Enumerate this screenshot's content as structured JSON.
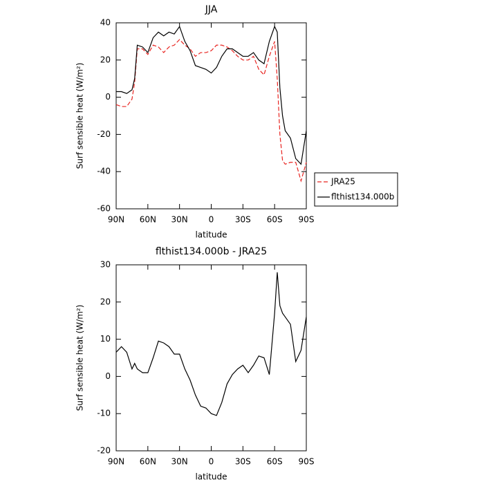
{
  "chart_data": [
    {
      "type": "line",
      "title": "JJA",
      "xlabel": "latitude",
      "ylabel": "Surf sensible heat (W/m²)",
      "x": [
        90,
        85,
        80,
        75,
        72.5,
        70,
        65,
        60,
        55,
        50,
        45,
        40,
        35,
        30,
        25,
        20,
        15,
        10,
        5,
        0,
        -5,
        -10,
        -15,
        -20,
        -25,
        -30,
        -35,
        -40,
        -45,
        -50,
        -55,
        -60,
        -62.5,
        -65,
        -67.5,
        -70,
        -75,
        -80,
        -85,
        -90
      ],
      "series": [
        {
          "name": "JRA25",
          "color": "#e8231f",
          "dash": true,
          "values": [
            -4,
            -5,
            -5,
            -1,
            8,
            26,
            26,
            23,
            28,
            27,
            24,
            27,
            28,
            31,
            28,
            26,
            22,
            24,
            24,
            25,
            28,
            28,
            27,
            25,
            22,
            20,
            20,
            22,
            15,
            12,
            22,
            30,
            10,
            -20,
            -34,
            -36,
            -35,
            -35,
            -45,
            -35
          ]
        },
        {
          "name": "flthist134.000b",
          "color": "#000000",
          "dash": false,
          "values": [
            3,
            3,
            2,
            4,
            10,
            28,
            27,
            24,
            32,
            35,
            33,
            35,
            34,
            38,
            30,
            25,
            17,
            16,
            15,
            13,
            16,
            22,
            26,
            26,
            24,
            22,
            22,
            24,
            20,
            18,
            30,
            38,
            35,
            5,
            -10,
            -18,
            -22,
            -33,
            -36,
            -18
          ]
        }
      ],
      "xlim": [
        90,
        -90
      ],
      "xticks": [
        {
          "value": 90,
          "label": "90N"
        },
        {
          "value": 60,
          "label": "60N"
        },
        {
          "value": 30,
          "label": "30N"
        },
        0,
        {
          "value": -30,
          "label": "30S"
        },
        {
          "value": -60,
          "label": "60S"
        },
        {
          "value": -90,
          "label": "90S"
        }
      ],
      "ylim": [
        -60,
        40
      ],
      "yticks": [
        -60,
        -40,
        -20,
        0,
        20,
        40
      ],
      "legend": "right"
    },
    {
      "type": "line",
      "title": "flthist134.000b - JRA25",
      "xlabel": "latitude",
      "ylabel": "Surf sensible heat (W/m²)",
      "x": [
        90,
        85,
        80,
        75,
        72.5,
        70,
        65,
        60,
        55,
        50,
        45,
        40,
        35,
        30,
        25,
        20,
        15,
        10,
        5,
        0,
        -5,
        -10,
        -15,
        -20,
        -25,
        -30,
        -35,
        -40,
        -45,
        -50,
        -55,
        -60,
        -62.5,
        -65,
        -67.5,
        -70,
        -75,
        -80,
        -85,
        -90
      ],
      "values": [
        6.5,
        8,
        6.5,
        2,
        3.5,
        2,
        1,
        1,
        5,
        9.5,
        9,
        8,
        6,
        6,
        2,
        -1,
        -5,
        -8,
        -8.5,
        -10,
        -10.5,
        -7,
        -2,
        0.5,
        2,
        3,
        1,
        3,
        5.5,
        5,
        0.5,
        17,
        28,
        19,
        17,
        16,
        14,
        4,
        7,
        16
      ],
      "color": "#000000",
      "xlim": [
        90,
        -90
      ],
      "xticks": [
        {
          "value": 90,
          "label": "90N"
        },
        {
          "value": 60,
          "label": "60N"
        },
        {
          "value": 30,
          "label": "30N"
        },
        0,
        {
          "value": -30,
          "label": "30S"
        },
        {
          "value": -60,
          "label": "60S"
        },
        {
          "value": -90,
          "label": "90S"
        }
      ],
      "ylim": [
        -20,
        30
      ],
      "yticks": [
        -20,
        -10,
        0,
        10,
        20,
        30
      ]
    }
  ]
}
